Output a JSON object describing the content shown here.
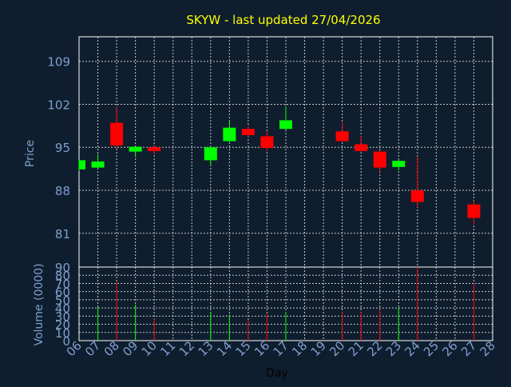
{
  "chart_data": {
    "type": "candlestick",
    "title": "SKYW - last updated 27/04/2026",
    "xlabel": "Day",
    "price_axis": {
      "ylabel": "Price",
      "ylim": [
        75.5,
        113
      ],
      "ticks": [
        81,
        88,
        95,
        102,
        109
      ]
    },
    "volume_axis": {
      "ylabel": "Volume (0000)",
      "ylim": [
        0,
        90
      ],
      "ticks": [
        0,
        10,
        20,
        30,
        40,
        50,
        60,
        70,
        80,
        90
      ]
    },
    "x_ticks": [
      "06",
      "07",
      "08",
      "09",
      "10",
      "11",
      "12",
      "13",
      "14",
      "15",
      "16",
      "17",
      "18",
      "19",
      "20",
      "21",
      "22",
      "23",
      "24",
      "25",
      "26",
      "27",
      "28"
    ],
    "candles": [
      {
        "day": "06",
        "open": 91.4,
        "high": 92.9,
        "low": 91.2,
        "close": 92.9
      },
      {
        "day": "07",
        "open": 91.7,
        "high": 93.9,
        "low": 91.5,
        "close": 92.7
      },
      {
        "day": "08",
        "open": 99.0,
        "high": 101.5,
        "low": 94.8,
        "close": 95.3
      },
      {
        "day": "09",
        "open": 94.3,
        "high": 95.1,
        "low": 93.4,
        "close": 95.1
      },
      {
        "day": "10",
        "open": 95.0,
        "high": 95.4,
        "low": 93.9,
        "close": 94.4
      },
      {
        "day": "13",
        "open": 92.9,
        "high": 95.2,
        "low": 92.0,
        "close": 95.0
      },
      {
        "day": "14",
        "open": 96.0,
        "high": 99.3,
        "low": 95.9,
        "close": 98.2
      },
      {
        "day": "15",
        "open": 98.0,
        "high": 98.5,
        "low": 96.7,
        "close": 97.0
      },
      {
        "day": "16",
        "open": 96.8,
        "high": 97.6,
        "low": 94.4,
        "close": 94.9
      },
      {
        "day": "17",
        "open": 98.0,
        "high": 101.7,
        "low": 97.9,
        "close": 99.4
      },
      {
        "day": "20",
        "open": 97.6,
        "high": 99.0,
        "low": 95.9,
        "close": 96.0
      },
      {
        "day": "21",
        "open": 95.5,
        "high": 96.9,
        "low": 94.3,
        "close": 94.4
      },
      {
        "day": "22",
        "open": 94.3,
        "high": 94.5,
        "low": 91.0,
        "close": 91.7
      },
      {
        "day": "23",
        "open": 91.8,
        "high": 93.0,
        "low": 91.3,
        "close": 92.8
      },
      {
        "day": "24",
        "open": 88.0,
        "high": 93.4,
        "low": 85.2,
        "close": 86.1
      },
      {
        "day": "27",
        "open": 85.7,
        "high": 86.3,
        "low": 82.4,
        "close": 83.5
      }
    ],
    "volumes": [
      {
        "day": "07",
        "value": 41,
        "direction": "up"
      },
      {
        "day": "08",
        "value": 72,
        "direction": "down"
      },
      {
        "day": "09",
        "value": 44,
        "direction": "up"
      },
      {
        "day": "10",
        "value": 27,
        "direction": "down"
      },
      {
        "day": "13",
        "value": 35,
        "direction": "up"
      },
      {
        "day": "14",
        "value": 32,
        "direction": "up"
      },
      {
        "day": "15",
        "value": 25,
        "direction": "down"
      },
      {
        "day": "16",
        "value": 33,
        "direction": "down"
      },
      {
        "day": "17",
        "value": 35,
        "direction": "up"
      },
      {
        "day": "20",
        "value": 35,
        "direction": "down"
      },
      {
        "day": "21",
        "value": 35,
        "direction": "down"
      },
      {
        "day": "22",
        "value": 38,
        "direction": "down"
      },
      {
        "day": "23",
        "value": 40,
        "direction": "up"
      },
      {
        "day": "24",
        "value": 95,
        "direction": "down"
      },
      {
        "day": "27",
        "value": 70,
        "direction": "down"
      }
    ],
    "grid": true,
    "colors": {
      "background": "#0f1e2e",
      "title": "#ffff00",
      "axis_text": "#7f9fcf",
      "label": "#7f9fcf",
      "day_label": "#000000",
      "up": "#00ff00",
      "down": "#ff0000",
      "grid": "#ffffff",
      "frame": "#ffffff"
    }
  }
}
